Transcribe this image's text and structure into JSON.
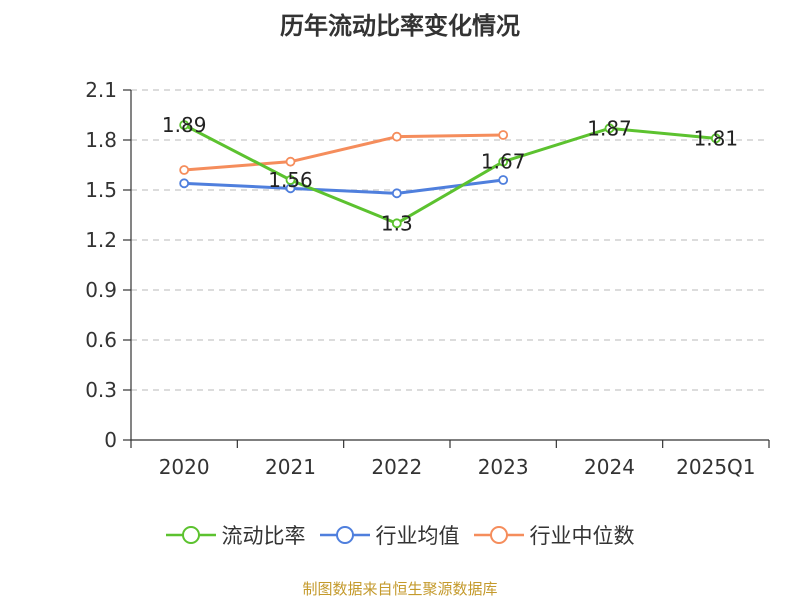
{
  "chart_data": {
    "type": "line",
    "title": "历年流动比率变化情况",
    "categories": [
      "2020",
      "2021",
      "2022",
      "2023",
      "2024",
      "2025Q1"
    ],
    "ylim": [
      0,
      2.1
    ],
    "yticks": [
      "0",
      "0.3",
      "0.6",
      "0.9",
      "1.2",
      "1.5",
      "1.8",
      "2.1"
    ],
    "grid": true,
    "legend_position": "bottom",
    "series": [
      {
        "name": "流动比率",
        "color": "#5cc22f",
        "values": [
          1.89,
          1.56,
          1.3,
          1.67,
          1.87,
          1.81
        ],
        "labels": [
          "1.89",
          "1.56",
          "1.3",
          "1.67",
          "1.87",
          "1.81"
        ]
      },
      {
        "name": "行业均值",
        "color": "#4f7fdd",
        "values": [
          1.54,
          1.51,
          1.48,
          1.56,
          null,
          null
        ]
      },
      {
        "name": "行业中位数",
        "color": "#f58d5c",
        "values": [
          1.62,
          1.67,
          1.82,
          1.83,
          null,
          null
        ]
      }
    ]
  },
  "source": "制图数据来自恒生聚源数据库"
}
